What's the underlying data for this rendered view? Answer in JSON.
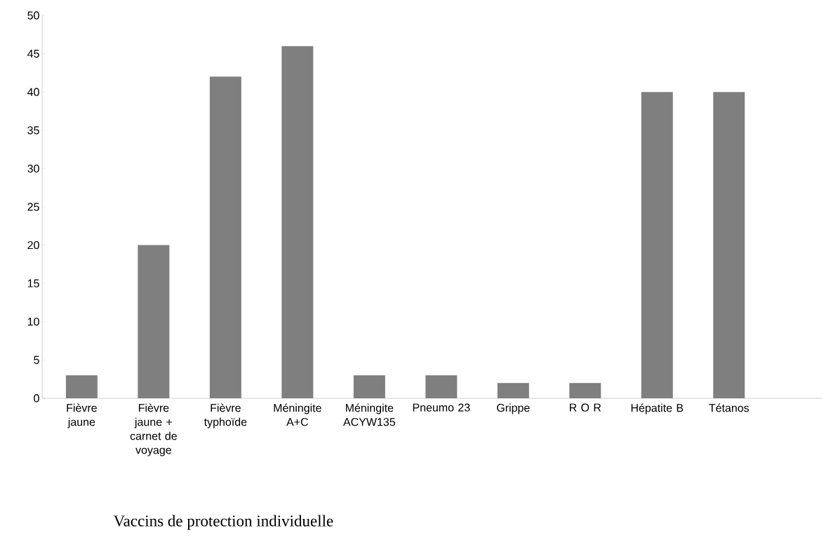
{
  "chart_data": {
    "type": "bar",
    "xlabel": "Vaccins de protection individuelle",
    "categories": [
      "Fièvre jaune",
      "Fièvre jaune + carnet de voyage",
      "Fièvre typhoïde",
      "Méningite A+C",
      "Méningite ACYW135",
      "Pneumo 23",
      "Grippe",
      "R O R",
      "Hépatite B",
      "Tétanos"
    ],
    "values": [
      3,
      20,
      42,
      46,
      3,
      3,
      2,
      2,
      40,
      40
    ],
    "color": "#7f7f7f",
    "ylim": [
      0,
      50
    ],
    "yticks": [
      0,
      5,
      10,
      15,
      20,
      25,
      30,
      35,
      40,
      45,
      50
    ]
  }
}
